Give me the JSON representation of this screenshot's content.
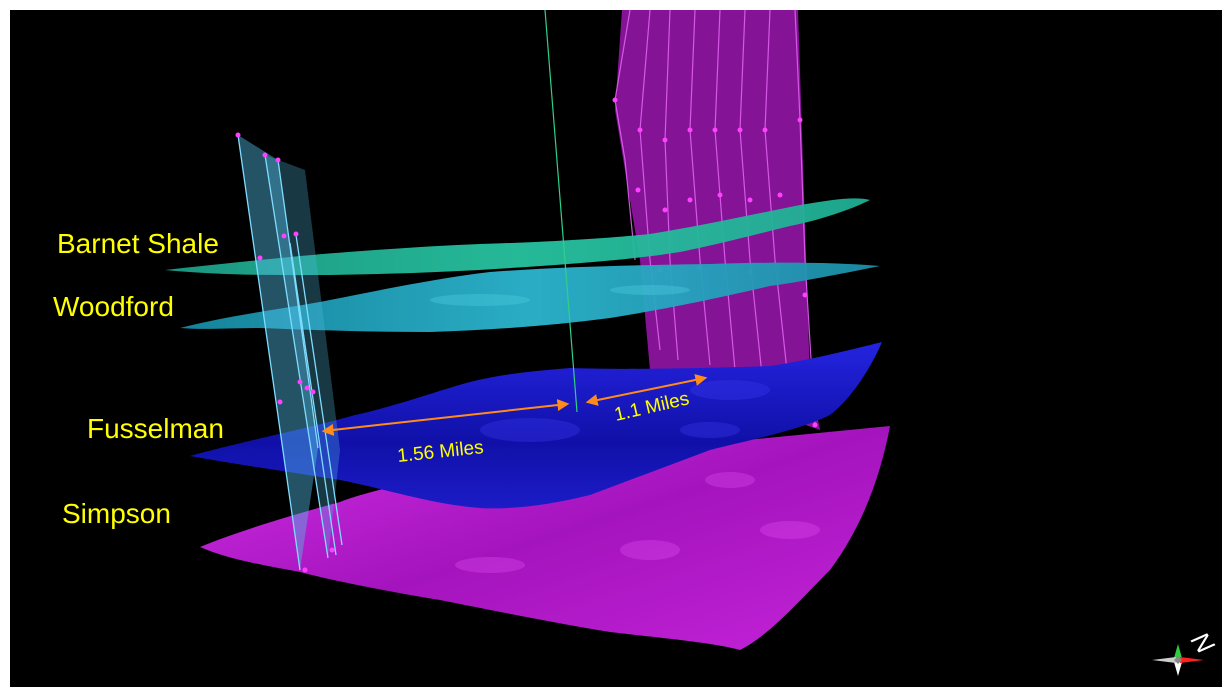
{
  "horizons": [
    {
      "key": "barnet",
      "label": "Barnet Shale",
      "color": "#1fbf9a"
    },
    {
      "key": "woodford",
      "label": "Woodford",
      "color": "#1aa0b8"
    },
    {
      "key": "fusselman",
      "label": "Fusselman",
      "color": "#1a1ad0"
    },
    {
      "key": "simpson",
      "label": "Simpson",
      "color": "#b016c8"
    }
  ],
  "measurements": [
    {
      "label": "1.56 Miles"
    },
    {
      "label": "1.1 Miles"
    }
  ],
  "compass": {
    "north_label": "N"
  },
  "colors": {
    "background": "#000000",
    "label_text": "#ffff00",
    "arrow": "#ff8c1a",
    "west_fault": "#5fc8e8",
    "east_fault": "#d020e0"
  }
}
